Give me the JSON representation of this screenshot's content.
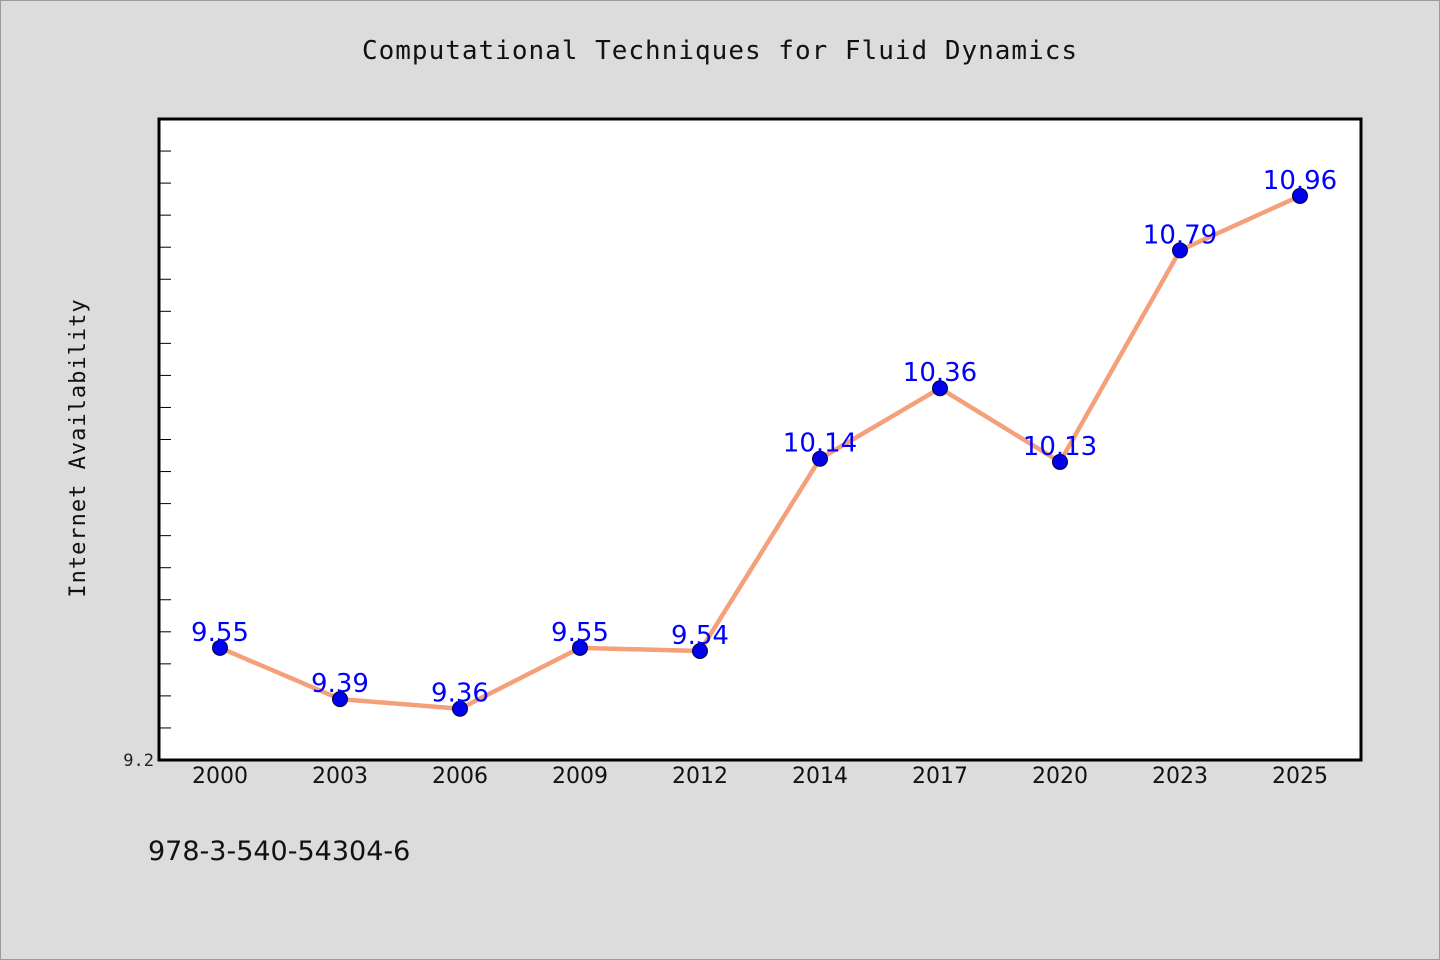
{
  "page": {
    "title": "Computational Techniques for Fluid Dynamics",
    "footer_text": "978-3-540-54304-6"
  },
  "chart_data": {
    "type": "line",
    "title": "Computational Techniques for Fluid Dynamics",
    "xlabel": "",
    "ylabel": "Internet Availability",
    "categories": [
      "2000",
      "2003",
      "2006",
      "2009",
      "2012",
      "2014",
      "2017",
      "2020",
      "2023",
      "2025"
    ],
    "series": [
      {
        "values": [
          9.55,
          9.39,
          9.36,
          9.55,
          9.54,
          10.14,
          10.36,
          10.13,
          10.79,
          10.96
        ],
        "line_color": "#f4a07a",
        "marker_color": "#0000ee",
        "label_color": "#0000ff"
      }
    ],
    "ylim": [
      9.2,
      11.2
    ],
    "y_tick_labels": [
      {
        "value": 9.2,
        "label": "9.2"
      }
    ],
    "y_minor_step": 0.1,
    "grid": false,
    "legend": "none"
  }
}
